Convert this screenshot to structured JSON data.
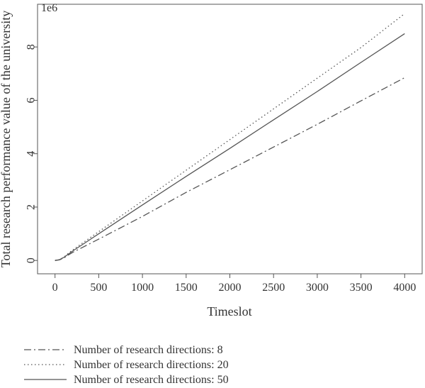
{
  "chart_data": {
    "type": "line",
    "title": "",
    "xlabel": "Timeslot",
    "ylabel": "Total research performance value of the university",
    "y_scale_label": "1e6",
    "xlim": [
      -200,
      4200
    ],
    "ylim": [
      -0.5,
      9.6
    ],
    "xticks": [
      0,
      500,
      1000,
      1500,
      2000,
      2500,
      3000,
      3500,
      4000
    ],
    "yticks": [
      0,
      2,
      4,
      6,
      8
    ],
    "grid": false,
    "legend_position": "bottom",
    "series": [
      {
        "name": "Number of research directions: 8",
        "style": "dashdot",
        "color": "#555555",
        "x": [
          0,
          50,
          100,
          150,
          200,
          500,
          1000,
          1500,
          2000,
          2500,
          3000,
          3500,
          4000
        ],
        "y": [
          0,
          0.02,
          0.09,
          0.2,
          0.3,
          0.8,
          1.65,
          2.55,
          3.4,
          4.25,
          5.1,
          5.98,
          6.85
        ]
      },
      {
        "name": "Number of research directions: 20",
        "style": "dotted",
        "color": "#555555",
        "x": [
          0,
          50,
          100,
          150,
          200,
          500,
          1000,
          1500,
          2000,
          2500,
          3000,
          3500,
          4000
        ],
        "y": [
          0,
          0.03,
          0.12,
          0.26,
          0.39,
          1.08,
          2.23,
          3.38,
          4.53,
          5.68,
          6.83,
          7.98,
          9.25
        ]
      },
      {
        "name": "Number of research directions: 50",
        "style": "solid",
        "color": "#555555",
        "x": [
          0,
          50,
          100,
          150,
          200,
          500,
          1000,
          1500,
          2000,
          2500,
          3000,
          3500,
          4000
        ],
        "y": [
          0,
          0.03,
          0.11,
          0.23,
          0.35,
          1.0,
          2.08,
          3.15,
          4.2,
          5.27,
          6.33,
          7.42,
          8.5
        ]
      }
    ]
  }
}
